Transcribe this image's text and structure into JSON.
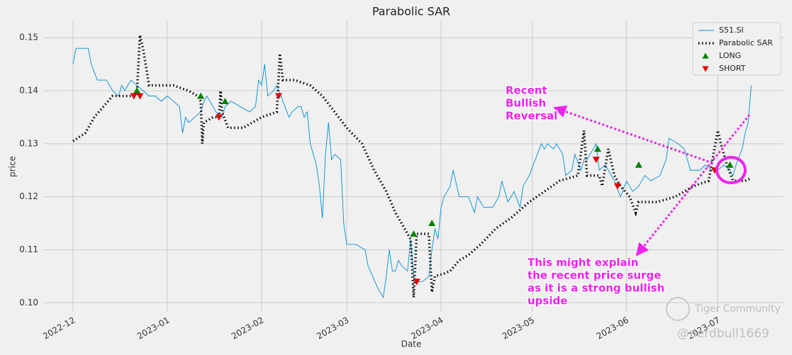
{
  "chart_data": {
    "type": "line",
    "title": "Parabolic SAR",
    "xlabel": "Date",
    "ylabel": "price",
    "xlim": [
      -9.56,
      233.6
    ],
    "xticks": [
      {
        "value": 0,
        "label": "2022-12"
      },
      {
        "value": 31,
        "label": "2023-01"
      },
      {
        "value": 62,
        "label": "2023-02"
      },
      {
        "value": 90,
        "label": "2023-03"
      },
      {
        "value": 121,
        "label": "2023-04"
      },
      {
        "value": 151,
        "label": "2023-05"
      },
      {
        "value": 182,
        "label": "2023-06"
      },
      {
        "value": 212,
        "label": "2023-07"
      }
    ],
    "ylim": [
      0.0983,
      0.1531
    ],
    "yticks": [
      {
        "value": 0.1,
        "label": "0.10"
      },
      0.11,
      0.12,
      0.13,
      0.14,
      0.15
    ],
    "grid": true,
    "legend": "upper right",
    "series": [
      {
        "name": "S51.SI",
        "style": "line",
        "color": "#008fd5",
        "x": [
          0,
          1,
          5,
          6,
          8,
          11,
          13,
          15,
          16,
          17,
          19,
          21,
          23,
          25,
          27,
          29,
          31,
          33,
          35,
          36,
          37,
          38,
          40,
          42,
          43,
          44,
          45,
          47,
          49,
          50,
          52,
          55,
          58,
          60,
          61,
          62,
          63,
          64,
          66,
          67,
          69,
          71,
          72,
          74,
          75,
          76,
          77,
          78,
          80,
          81,
          82,
          83,
          84,
          85,
          86,
          88,
          89,
          90,
          93,
          96,
          97,
          100,
          102,
          103,
          104,
          105,
          106,
          107,
          108,
          110,
          111,
          112,
          113,
          115,
          117,
          118,
          119,
          120,
          121,
          122,
          124,
          125,
          127,
          130,
          132,
          133,
          135,
          138,
          140,
          141,
          143,
          145,
          147,
          148,
          150,
          152,
          154,
          155,
          156,
          158,
          159,
          161,
          162,
          164,
          165,
          167,
          168,
          169,
          170,
          172,
          173,
          175,
          176,
          178,
          180,
          182,
          184,
          186,
          188,
          190,
          193,
          195,
          196,
          199,
          201,
          202,
          203,
          206,
          208,
          210,
          212,
          214,
          216,
          217,
          218,
          220,
          221,
          222,
          223
        ],
        "values": [
          0.145,
          0.148,
          0.148,
          0.145,
          0.142,
          0.142,
          0.14,
          0.139,
          0.141,
          0.14,
          0.142,
          0.141,
          0.14,
          0.139,
          0.139,
          0.138,
          0.139,
          0.138,
          0.137,
          0.132,
          0.135,
          0.134,
          0.135,
          0.136,
          0.138,
          0.139,
          0.138,
          0.136,
          0.135,
          0.137,
          0.138,
          0.137,
          0.136,
          0.137,
          0.142,
          0.141,
          0.145,
          0.139,
          0.14,
          0.141,
          0.138,
          0.135,
          0.136,
          0.137,
          0.137,
          0.135,
          0.136,
          0.13,
          0.126,
          0.122,
          0.116,
          0.128,
          0.134,
          0.127,
          0.128,
          0.127,
          0.115,
          0.111,
          0.111,
          0.11,
          0.107,
          0.103,
          0.101,
          0.105,
          0.11,
          0.106,
          0.106,
          0.108,
          0.107,
          0.106,
          0.112,
          0.105,
          0.104,
          0.104,
          0.105,
          0.11,
          0.114,
          0.112,
          0.118,
          0.12,
          0.122,
          0.125,
          0.12,
          0.12,
          0.117,
          0.12,
          0.118,
          0.118,
          0.12,
          0.123,
          0.119,
          0.121,
          0.118,
          0.122,
          0.124,
          0.127,
          0.13,
          0.129,
          0.13,
          0.129,
          0.13,
          0.128,
          0.124,
          0.125,
          0.128,
          0.125,
          0.127,
          0.127,
          0.128,
          0.13,
          0.125,
          0.126,
          0.125,
          0.123,
          0.12,
          0.123,
          0.121,
          0.122,
          0.124,
          0.123,
          0.124,
          0.127,
          0.131,
          0.13,
          0.129,
          0.127,
          0.125,
          0.125,
          0.126,
          0.125,
          0.125,
          0.126,
          0.125,
          0.124,
          0.126,
          0.129,
          0.132,
          0.134,
          0.141
        ]
      },
      {
        "name": "Parabolic SAR",
        "style": "dotted",
        "color": "#000000",
        "x": [
          0,
          4,
          7,
          10,
          13,
          20,
          21,
          22,
          23,
          25,
          33,
          38,
          41,
          42,
          42.5,
          43,
          46,
          48,
          48.5,
          49,
          51,
          56,
          59,
          62,
          67,
          68,
          69,
          73,
          78,
          82,
          86,
          90,
          95,
          99,
          103,
          106,
          108,
          110,
          111,
          112,
          113,
          117,
          118,
          119,
          122,
          124,
          127,
          130,
          134,
          139,
          144,
          150,
          155,
          160,
          166,
          168,
          169,
          173,
          174,
          176,
          178,
          180,
          183,
          185,
          186,
          192,
          198,
          204,
          209,
          212,
          213,
          215,
          217,
          221,
          223
        ],
        "values": [
          0.1305,
          0.132,
          0.135,
          0.137,
          0.139,
          0.139,
          0.1395,
          0.1505,
          0.148,
          0.141,
          0.141,
          0.14,
          0.139,
          0.138,
          0.13,
          0.134,
          0.135,
          0.135,
          0.14,
          0.136,
          0.133,
          0.133,
          0.134,
          0.135,
          0.136,
          0.147,
          0.142,
          0.142,
          0.141,
          0.139,
          0.136,
          0.133,
          0.13,
          0.125,
          0.121,
          0.117,
          0.115,
          0.113,
          0.112,
          0.101,
          0.113,
          0.113,
          0.102,
          0.105,
          0.1055,
          0.106,
          0.108,
          0.109,
          0.111,
          0.114,
          0.116,
          0.119,
          0.121,
          0.123,
          0.124,
          0.1325,
          0.124,
          0.124,
          0.122,
          0.129,
          0.124,
          0.122,
          0.12,
          0.117,
          0.119,
          0.119,
          0.12,
          0.122,
          0.123,
          0.1325,
          0.13,
          0.126,
          0.123,
          0.123,
          0.1235
        ]
      },
      {
        "name": "LONG",
        "style": "marker-up",
        "color": "#008000",
        "x": [
          21,
          42,
          50,
          112,
          118,
          172.5,
          186,
          216
        ],
        "values": [
          0.14,
          0.139,
          0.138,
          0.113,
          0.115,
          0.129,
          0.126,
          0.126
        ]
      },
      {
        "name": "SHORT",
        "style": "marker-down",
        "color": "#e00000",
        "x": [
          20,
          22,
          48,
          67.6,
          113,
          172,
          179,
          211
        ],
        "values": [
          0.139,
          0.139,
          0.135,
          0.139,
          0.104,
          0.127,
          0.122,
          0.125
        ]
      }
    ],
    "annotations": [
      {
        "lines": [
          "Recent",
          "Bullish",
          "Reversal"
        ],
        "color": "#ee22ee"
      },
      {
        "lines": [
          "This might explain",
          "the recent price surge",
          "as it is a strong bullish",
          "upside"
        ],
        "color": "#ee22ee"
      }
    ]
  },
  "watermark": [
    "Tiger Community",
    "@nerdbull1669"
  ]
}
